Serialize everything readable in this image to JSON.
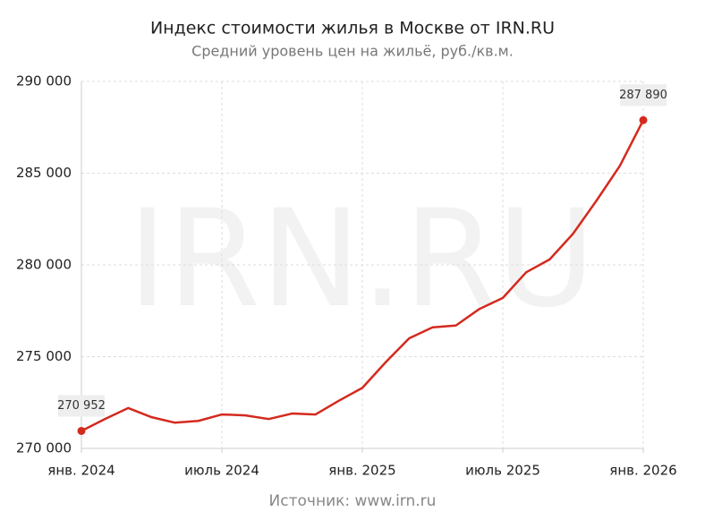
{
  "chart_data": {
    "type": "line",
    "title": "Индекс стоимости жилья в Москве от IRN.RU",
    "subtitle": "Средний уровень цен на жильё, руб./кв.м.",
    "watermark": "IRN.RU",
    "source": "Источник: www.irn.ru",
    "categories": [
      "янв. 2024",
      null,
      null,
      null,
      null,
      null,
      "июль 2024",
      null,
      null,
      null,
      null,
      null,
      "янв. 2025",
      null,
      null,
      null,
      null,
      null,
      "июль 2025",
      null,
      null,
      null,
      null,
      null,
      "янв. 2026"
    ],
    "series": [
      {
        "name": "Индекс",
        "color": "#d42a1e",
        "values": [
          270952,
          271600,
          272200,
          271700,
          271400,
          271500,
          271850,
          271800,
          271600,
          271900,
          271850,
          272600,
          273300,
          274700,
          276000,
          276600,
          276700,
          277600,
          278200,
          279600,
          280300,
          281700,
          283500,
          285400,
          287890
        ],
        "value_labels": [
          "270 952",
          null,
          null,
          null,
          null,
          null,
          null,
          null,
          null,
          null,
          null,
          null,
          null,
          null,
          null,
          null,
          null,
          null,
          null,
          null,
          null,
          null,
          null,
          null,
          "287 890"
        ]
      }
    ],
    "ylim": [
      270000,
      290000
    ],
    "yticks": [
      {
        "value": 270000,
        "label": "270 000"
      },
      {
        "value": 275000,
        "label": "275 000"
      },
      {
        "value": 280000,
        "label": "280 000"
      },
      {
        "value": 285000,
        "label": "285 000"
      },
      {
        "value": 290000,
        "label": "290 000"
      }
    ],
    "grid": true
  }
}
